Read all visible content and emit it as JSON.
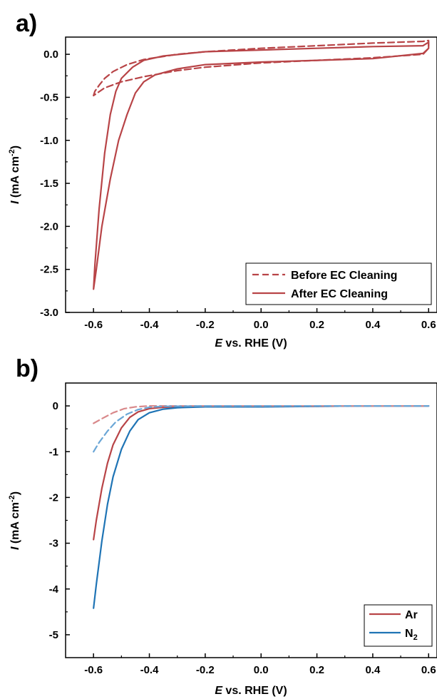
{
  "chart_data": [
    {
      "panel": "a)",
      "type": "line",
      "xlabel_italic": "E",
      "xlabel_rest": " vs. RHE  (V)",
      "ylabel_italic": "I",
      "ylabel_rest": " (mA cm",
      "ylabel_sup": "-2",
      "ylabel_close": ")",
      "xlim": [
        -0.7,
        0.63
      ],
      "ylim": [
        -3.0,
        0.2
      ],
      "xticks": [
        -0.6,
        -0.4,
        -0.2,
        0.0,
        0.2,
        0.4,
        0.6
      ],
      "xtick_labels": [
        "-0.6",
        "-0.4",
        "-0.2",
        "0.0",
        "0.2",
        "0.4",
        "0.6"
      ],
      "yticks": [
        0.0,
        -0.5,
        -1.0,
        -1.5,
        -2.0,
        -2.5,
        -3.0
      ],
      "ytick_labels": [
        "0.0",
        "-0.5",
        "-1.0",
        "-1.5",
        "-2.0",
        "-2.5",
        "-3.0"
      ],
      "legend_position": "bottom-right",
      "series": [
        {
          "name": "Before EC Cleaning",
          "color": "#b84447",
          "dash": "dashed",
          "points": [
            [
              -0.6,
              -0.48
            ],
            [
              -0.595,
              -0.43
            ],
            [
              -0.58,
              -0.36
            ],
            [
              -0.56,
              -0.28
            ],
            [
              -0.53,
              -0.2
            ],
            [
              -0.48,
              -0.12
            ],
            [
              -0.42,
              -0.06
            ],
            [
              -0.3,
              0.0
            ],
            [
              -0.2,
              0.03
            ],
            [
              0.0,
              0.07
            ],
            [
              0.2,
              0.1
            ],
            [
              0.4,
              0.13
            ],
            [
              0.58,
              0.15
            ],
            [
              0.6,
              0.16
            ],
            [
              0.6,
              0.07
            ],
            [
              0.58,
              0.0
            ],
            [
              0.4,
              -0.04
            ],
            [
              0.2,
              -0.07
            ],
            [
              0.0,
              -0.1
            ],
            [
              -0.2,
              -0.15
            ],
            [
              -0.3,
              -0.19
            ],
            [
              -0.42,
              -0.26
            ],
            [
              -0.5,
              -0.32
            ],
            [
              -0.56,
              -0.39
            ],
            [
              -0.6,
              -0.48
            ]
          ]
        },
        {
          "name": "After EC Cleaning",
          "color": "#b84447",
          "dash": "solid",
          "points": [
            [
              -0.6,
              -2.73
            ],
            [
              -0.595,
              -2.45
            ],
            [
              -0.58,
              -1.8
            ],
            [
              -0.56,
              -1.15
            ],
            [
              -0.54,
              -0.7
            ],
            [
              -0.52,
              -0.43
            ],
            [
              -0.5,
              -0.28
            ],
            [
              -0.46,
              -0.15
            ],
            [
              -0.42,
              -0.07
            ],
            [
              -0.35,
              -0.02
            ],
            [
              -0.2,
              0.03
            ],
            [
              0.0,
              0.05
            ],
            [
              0.2,
              0.07
            ],
            [
              0.4,
              0.09
            ],
            [
              0.58,
              0.1
            ],
            [
              0.6,
              0.14
            ],
            [
              0.6,
              0.07
            ],
            [
              0.58,
              0.01
            ],
            [
              0.4,
              -0.05
            ],
            [
              0.2,
              -0.07
            ],
            [
              0.0,
              -0.09
            ],
            [
              -0.2,
              -0.12
            ],
            [
              -0.3,
              -0.17
            ],
            [
              -0.38,
              -0.24
            ],
            [
              -0.42,
              -0.32
            ],
            [
              -0.45,
              -0.45
            ],
            [
              -0.48,
              -0.7
            ],
            [
              -0.51,
              -1.0
            ],
            [
              -0.54,
              -1.45
            ],
            [
              -0.57,
              -2.0
            ],
            [
              -0.59,
              -2.5
            ],
            [
              -0.6,
              -2.73
            ]
          ]
        }
      ]
    },
    {
      "panel": "b)",
      "type": "line",
      "xlabel_italic": "E",
      "xlabel_rest": " vs. RHE (V)",
      "ylabel_italic": "I",
      "ylabel_rest": " (mA cm",
      "ylabel_sup": "-2",
      "ylabel_close": ")",
      "xlim": [
        -0.7,
        0.63
      ],
      "ylim": [
        -5.5,
        0.5
      ],
      "xticks": [
        -0.6,
        -0.4,
        -0.2,
        0.0,
        0.2,
        0.4,
        0.6
      ],
      "xtick_labels": [
        "-0.6",
        "-0.4",
        "-0.2",
        "0.0",
        "0.2",
        "0.4",
        "0.6"
      ],
      "yticks": [
        0,
        -1,
        -2,
        -3,
        -4,
        -5
      ],
      "ytick_labels": [
        "0",
        "-1",
        "-2",
        "-3",
        "-4",
        "-5"
      ],
      "legend_position": "bottom-right",
      "series": [
        {
          "name": "Ar",
          "color": "#b84447",
          "dash": "solid",
          "in_legend": true,
          "points": [
            [
              -0.6,
              -2.92
            ],
            [
              -0.59,
              -2.5
            ],
            [
              -0.57,
              -1.8
            ],
            [
              -0.55,
              -1.25
            ],
            [
              -0.53,
              -0.85
            ],
            [
              -0.5,
              -0.48
            ],
            [
              -0.47,
              -0.25
            ],
            [
              -0.44,
              -0.13
            ],
            [
              -0.4,
              -0.06
            ],
            [
              -0.35,
              -0.03
            ],
            [
              -0.3,
              -0.02
            ],
            [
              -0.2,
              -0.01
            ],
            [
              0.0,
              -0.01
            ],
            [
              0.2,
              -0.01
            ],
            [
              0.4,
              0.0
            ],
            [
              0.6,
              0.0
            ]
          ]
        },
        {
          "name": "N",
          "name_sub": "2",
          "color": "#1f74b5",
          "dash": "solid",
          "in_legend": true,
          "points": [
            [
              -0.6,
              -4.42
            ],
            [
              -0.59,
              -3.9
            ],
            [
              -0.57,
              -2.95
            ],
            [
              -0.55,
              -2.15
            ],
            [
              -0.53,
              -1.55
            ],
            [
              -0.5,
              -0.95
            ],
            [
              -0.47,
              -0.55
            ],
            [
              -0.44,
              -0.3
            ],
            [
              -0.4,
              -0.15
            ],
            [
              -0.35,
              -0.07
            ],
            [
              -0.3,
              -0.04
            ],
            [
              -0.2,
              -0.02
            ],
            [
              0.0,
              -0.02
            ],
            [
              0.2,
              -0.01
            ],
            [
              0.4,
              0.0
            ],
            [
              0.6,
              0.0
            ]
          ]
        },
        {
          "name": "Ar (dashed)",
          "color": "#d9898b",
          "dash": "dashed",
          "in_legend": false,
          "points": [
            [
              -0.6,
              -0.38
            ],
            [
              -0.57,
              -0.28
            ],
            [
              -0.53,
              -0.15
            ],
            [
              -0.49,
              -0.06
            ],
            [
              -0.45,
              -0.02
            ],
            [
              -0.4,
              0.0
            ],
            [
              -0.2,
              0.0
            ],
            [
              0.0,
              0.0
            ],
            [
              0.2,
              0.0
            ],
            [
              0.4,
              0.0
            ],
            [
              0.6,
              0.0
            ]
          ]
        },
        {
          "name": "N2 (dashed)",
          "color": "#6aa6d6",
          "dash": "dashed",
          "in_legend": false,
          "points": [
            [
              -0.6,
              -1.0
            ],
            [
              -0.58,
              -0.8
            ],
            [
              -0.55,
              -0.55
            ],
            [
              -0.52,
              -0.35
            ],
            [
              -0.48,
              -0.18
            ],
            [
              -0.44,
              -0.08
            ],
            [
              -0.4,
              -0.03
            ],
            [
              -0.35,
              -0.01
            ],
            [
              -0.2,
              0.0
            ],
            [
              0.0,
              0.0
            ],
            [
              0.2,
              0.0
            ],
            [
              0.4,
              0.0
            ],
            [
              0.6,
              0.0
            ]
          ]
        }
      ]
    }
  ]
}
